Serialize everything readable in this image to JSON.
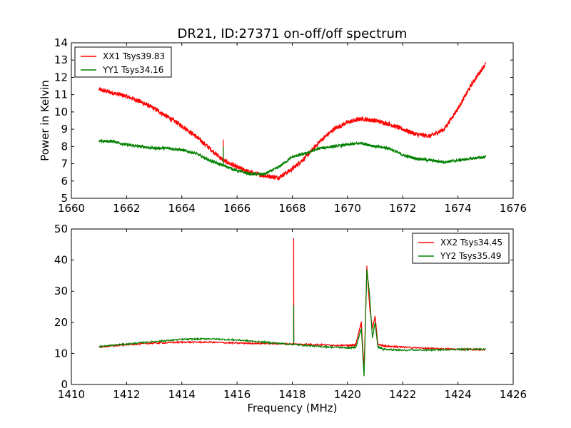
{
  "chart_data": [
    {
      "type": "line",
      "title": "DR21, ID:27371 on-off/off spectrum",
      "xlabel": "",
      "ylabel": "Power in Kelvin",
      "xlim": [
        1660,
        1676
      ],
      "ylim": [
        5,
        14
      ],
      "xticks": [
        "1660",
        "1662",
        "1664",
        "1666",
        "1668",
        "1670",
        "1672",
        "1674",
        "1676"
      ],
      "yticks": [
        "5",
        "6",
        "7",
        "8",
        "9",
        "10",
        "11",
        "12",
        "13",
        "14"
      ],
      "legend_position": "top-left",
      "grid": false,
      "series": [
        {
          "name": "XX1 Tsys39.83",
          "color": "#ff0000",
          "noise": 0.13,
          "x": [
            1661.0,
            1661.5,
            1662.0,
            1662.5,
            1663.0,
            1663.5,
            1664.0,
            1664.5,
            1665.0,
            1665.5,
            1666.0,
            1666.5,
            1667.0,
            1667.5,
            1668.0,
            1668.5,
            1669.0,
            1669.5,
            1670.0,
            1670.5,
            1671.0,
            1671.5,
            1672.0,
            1672.5,
            1673.0,
            1673.5,
            1674.0,
            1674.5,
            1675.0
          ],
          "y": [
            11.3,
            11.1,
            10.9,
            10.6,
            10.2,
            9.7,
            9.2,
            8.6,
            7.9,
            7.2,
            6.8,
            6.5,
            6.3,
            6.2,
            6.7,
            7.4,
            8.3,
            9.0,
            9.4,
            9.6,
            9.5,
            9.3,
            9.0,
            8.7,
            8.6,
            9.0,
            10.2,
            11.6,
            12.8
          ],
          "spikes": [
            {
              "x": 1665.5,
              "y": 8.4
            }
          ]
        },
        {
          "name": "YY1 Tsys34.16",
          "color": "#008000",
          "noise": 0.08,
          "x": [
            1661.0,
            1661.5,
            1662.0,
            1662.5,
            1663.0,
            1663.5,
            1664.0,
            1664.5,
            1665.0,
            1665.5,
            1666.0,
            1666.5,
            1667.0,
            1667.5,
            1668.0,
            1668.5,
            1669.0,
            1669.5,
            1670.0,
            1670.5,
            1671.0,
            1671.5,
            1672.0,
            1672.5,
            1673.0,
            1673.5,
            1674.0,
            1674.5,
            1675.0
          ],
          "y": [
            8.3,
            8.3,
            8.1,
            8.0,
            7.9,
            7.9,
            7.8,
            7.6,
            7.2,
            6.9,
            6.6,
            6.4,
            6.4,
            6.8,
            7.4,
            7.6,
            7.9,
            8.0,
            8.1,
            8.2,
            8.0,
            7.9,
            7.5,
            7.3,
            7.2,
            7.1,
            7.2,
            7.3,
            7.4
          ],
          "spikes": [
            {
              "x": 1665.5,
              "y": 8.0
            }
          ]
        }
      ]
    },
    {
      "type": "line",
      "title": "",
      "xlabel": "Frequency (MHz)",
      "ylabel": "",
      "xlim": [
        1410,
        1426
      ],
      "ylim": [
        0,
        50
      ],
      "xticks": [
        "1410",
        "1412",
        "1414",
        "1416",
        "1418",
        "1420",
        "1422",
        "1424",
        "1426"
      ],
      "yticks": [
        "0",
        "10",
        "20",
        "30",
        "40",
        "50"
      ],
      "legend_position": "top-right",
      "grid": false,
      "series": [
        {
          "name": "XX2 Tsys34.45",
          "color": "#ff0000",
          "noise": 0.25,
          "x": [
            1411.0,
            1412.0,
            1413.0,
            1414.0,
            1415.0,
            1416.0,
            1417.0,
            1418.0,
            1419.0,
            1420.0,
            1420.3,
            1420.5,
            1420.6,
            1420.7,
            1420.8,
            1420.9,
            1421.0,
            1421.1,
            1421.3,
            1422.0,
            1423.0,
            1424.0,
            1425.0
          ],
          "y": [
            12.0,
            12.8,
            13.3,
            13.6,
            13.6,
            13.3,
            13.2,
            13.0,
            12.8,
            12.5,
            12.8,
            20.0,
            5.0,
            38.0,
            25.0,
            18.0,
            22.0,
            13.0,
            12.4,
            12.0,
            11.6,
            11.3,
            11.2
          ],
          "spikes": [
            {
              "x": 1418.05,
              "y": 47.0
            }
          ]
        },
        {
          "name": "YY2 Tsys35.49",
          "color": "#008000",
          "noise": 0.25,
          "x": [
            1411.0,
            1412.0,
            1413.0,
            1414.0,
            1415.0,
            1416.0,
            1417.0,
            1418.0,
            1419.0,
            1420.0,
            1420.3,
            1420.5,
            1420.6,
            1420.7,
            1420.8,
            1420.9,
            1421.0,
            1421.1,
            1421.3,
            1422.0,
            1423.0,
            1424.0,
            1425.0
          ],
          "y": [
            12.2,
            13.0,
            13.8,
            14.5,
            14.7,
            14.3,
            13.6,
            12.9,
            12.2,
            11.8,
            11.9,
            18.0,
            2.5,
            37.0,
            29.0,
            15.0,
            20.0,
            12.0,
            11.3,
            11.0,
            11.1,
            11.3,
            11.4
          ],
          "spikes": [
            {
              "x": 1418.05,
              "y": 25.5
            }
          ]
        }
      ]
    }
  ]
}
